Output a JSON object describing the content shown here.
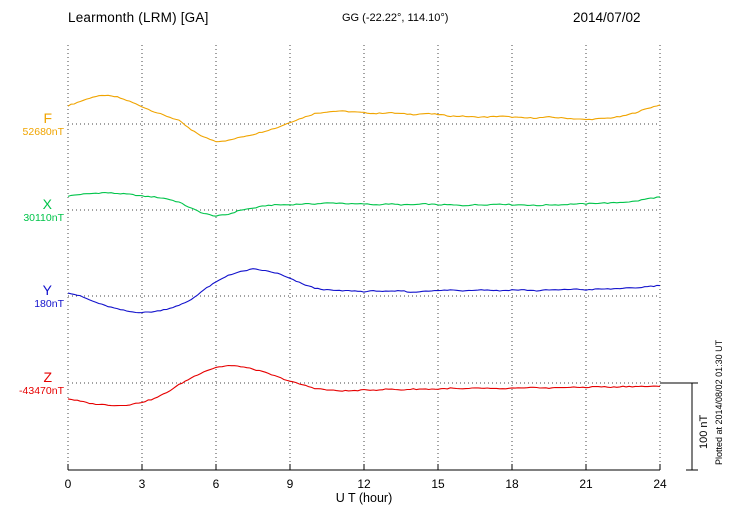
{
  "header": {
    "title": "Learmonth (LRM)  [GA]",
    "location": "GG (-22.22°, 114.10°)",
    "date": "2014/07/02"
  },
  "footer": {
    "plotted_at": "Plotted at 2014/08/02 01:30 UT"
  },
  "chart_data": {
    "type": "line",
    "title": "Learmonth (LRM) [GA] magnetogram, 2014/07/02",
    "xlabel": "U T (hour)",
    "xlim": [
      0,
      24
    ],
    "x_ticks": [
      0,
      3,
      6,
      9,
      12,
      15,
      18,
      21,
      24
    ],
    "x_step_hours": 0.5,
    "grid": "dotted",
    "scale_bar": {
      "label": "100 nT",
      "nT": 100
    },
    "series": [
      {
        "name": "F",
        "base_label": "52680nT",
        "color": "#f0a400",
        "offsets_nT": [
          21,
          26,
          31,
          33,
          31,
          26,
          20,
          14,
          9,
          4,
          -7,
          -15,
          -20,
          -19,
          -15,
          -12,
          -8,
          -4,
          2,
          7,
          12,
          14,
          15,
          14,
          13,
          12,
          13,
          12,
          11,
          12,
          11,
          9,
          9,
          8,
          8,
          9,
          8,
          7,
          7,
          8,
          7,
          6,
          5,
          6,
          7,
          9,
          13,
          18,
          22
        ]
      },
      {
        "name": "X",
        "base_label": "30110nT",
        "color": "#00c44a",
        "offsets_nT": [
          16,
          18,
          19,
          20,
          19,
          18,
          16,
          15,
          13,
          9,
          2,
          -4,
          -7,
          -5,
          0,
          2,
          5,
          6,
          6,
          7,
          7,
          8,
          8,
          7,
          7,
          6,
          7,
          6,
          6,
          7,
          6,
          6,
          5,
          6,
          6,
          7,
          6,
          6,
          5,
          6,
          6,
          7,
          7,
          8,
          8,
          9,
          10,
          13,
          15
        ]
      },
      {
        "name": "Y",
        "base_label": "180nT",
        "color": "#1212cc",
        "offsets_nT": [
          4,
          0,
          -6,
          -11,
          -15,
          -18,
          -19,
          -18,
          -15,
          -11,
          -4,
          7,
          16,
          24,
          28,
          31,
          29,
          26,
          20,
          14,
          9,
          7,
          6,
          6,
          5,
          6,
          5,
          6,
          4,
          6,
          6,
          7,
          6,
          7,
          7,
          6,
          7,
          7,
          6,
          7,
          7,
          8,
          7,
          8,
          8,
          9,
          9,
          11,
          12
        ]
      },
      {
        "name": "Z",
        "base_label": "-43470nT",
        "color": "#e60000",
        "offsets_nT": [
          -18,
          -21,
          -24,
          -25,
          -26,
          -25,
          -22,
          -18,
          -11,
          -2,
          6,
          13,
          18,
          20,
          19,
          16,
          12,
          7,
          2,
          -2,
          -6,
          -8,
          -9,
          -9,
          -8,
          -8,
          -7,
          -8,
          -7,
          -7,
          -7,
          -6,
          -7,
          -6,
          -6,
          -7,
          -6,
          -6,
          -5,
          -6,
          -5,
          -5,
          -5,
          -4,
          -5,
          -4,
          -4,
          -4,
          -4
        ]
      }
    ]
  }
}
